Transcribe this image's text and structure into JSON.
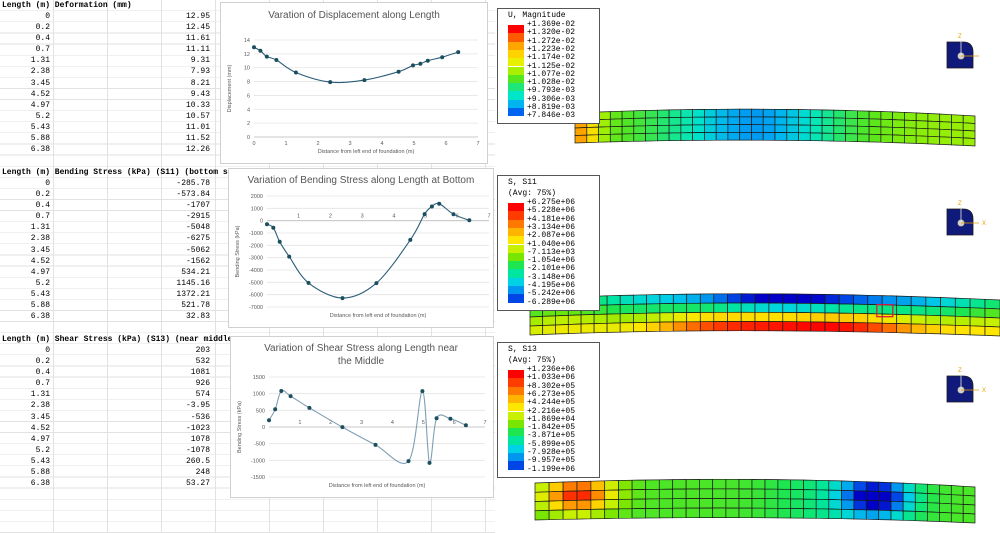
{
  "sheet": {
    "tables": [
      {
        "header": "Length (m)  Deformation (mm)",
        "rows": [
          [
            "0",
            "12.95"
          ],
          [
            "0.2",
            "12.45"
          ],
          [
            "0.4",
            "11.61"
          ],
          [
            "0.7",
            "11.11"
          ],
          [
            "1.31",
            "9.31"
          ],
          [
            "2.38",
            "7.93"
          ],
          [
            "3.45",
            "8.21"
          ],
          [
            "4.52",
            "9.43"
          ],
          [
            "4.97",
            "10.33"
          ],
          [
            "5.2",
            "10.57"
          ],
          [
            "5.43",
            "11.01"
          ],
          [
            "5.88",
            "11.52"
          ],
          [
            "6.38",
            "12.26"
          ]
        ]
      },
      {
        "header": "Length (m)  Bending Stress (kPa) (S11) (bottom s",
        "rows": [
          [
            "0",
            "-285.78"
          ],
          [
            "0.2",
            "-573.84"
          ],
          [
            "0.4",
            "-1707"
          ],
          [
            "0.7",
            "-2915"
          ],
          [
            "1.31",
            "-5048"
          ],
          [
            "2.38",
            "-6275"
          ],
          [
            "3.45",
            "-5062"
          ],
          [
            "4.52",
            "-1562"
          ],
          [
            "4.97",
            "534.21"
          ],
          [
            "5.2",
            "1145.16"
          ],
          [
            "5.43",
            "1372.21"
          ],
          [
            "5.88",
            "521.78"
          ],
          [
            "6.38",
            "32.83"
          ]
        ]
      },
      {
        "header": "Length (m)  Shear Stress (kPa) (S13) (near middle",
        "rows": [
          [
            "0",
            "203"
          ],
          [
            "0.2",
            "532"
          ],
          [
            "0.4",
            "1081"
          ],
          [
            "0.7",
            "926"
          ],
          [
            "1.31",
            "574"
          ],
          [
            "2.38",
            "-3.95"
          ],
          [
            "3.45",
            "-536"
          ],
          [
            "4.52",
            "-1023"
          ],
          [
            "4.97",
            "1078"
          ],
          [
            "5.2",
            "-1078"
          ],
          [
            "5.43",
            "260.5"
          ],
          [
            "5.88",
            "248"
          ],
          [
            "6.38",
            "53.27"
          ]
        ]
      }
    ]
  },
  "chart_data": [
    {
      "type": "line",
      "title": "Varation of Displacement along Length",
      "xlabel": "Distance from left end of foundation (m)",
      "ylabel": "Displacement (mm)",
      "xlim": [
        0,
        7
      ],
      "ylim": [
        0,
        14
      ],
      "xticks": [
        "0",
        "1",
        "2",
        "3",
        "4",
        "5",
        "6",
        "7"
      ],
      "yticks": [
        "0",
        "2",
        "4",
        "6",
        "8",
        "10",
        "12",
        "14"
      ],
      "x": [
        0,
        0.2,
        0.4,
        0.7,
        1.31,
        2.38,
        3.45,
        4.52,
        4.97,
        5.2,
        5.43,
        5.88,
        6.38
      ],
      "y": [
        12.95,
        12.45,
        11.61,
        11.11,
        9.31,
        7.93,
        8.21,
        9.43,
        10.33,
        10.57,
        11.01,
        11.52,
        12.26
      ],
      "color": "#2c5d78",
      "marker_color": "#1b4f5e"
    },
    {
      "type": "line",
      "title": "Variation of Bending Stress along Length at Bottom",
      "xlabel": "Distance from left end of foundation (m)",
      "ylabel": "Bending Stress (kPa)",
      "xlim": [
        0,
        7
      ],
      "ylim": [
        -7000,
        2000
      ],
      "xticks": [
        "1",
        "2",
        "3",
        "4",
        "5",
        "6",
        "7"
      ],
      "yticks": [
        "2000",
        "1000",
        "0",
        "-1000",
        "-2000",
        "-3000",
        "-4000",
        "-5000",
        "-6000",
        "-7000"
      ],
      "x": [
        0,
        0.2,
        0.4,
        0.7,
        1.31,
        2.38,
        3.45,
        4.52,
        4.97,
        5.2,
        5.43,
        5.88,
        6.38
      ],
      "y": [
        -285.78,
        -573.84,
        -1707,
        -2915,
        -5048,
        -6275,
        -5062,
        -1562,
        534.21,
        1145.16,
        1372.21,
        521.78,
        32.83
      ],
      "color": "#2c5d78",
      "marker_color": "#1b4f5e"
    },
    {
      "type": "line",
      "title": "Variation of Shear Stress along Length near the Middle",
      "xlabel": "Distance from left end of foundation (m)",
      "ylabel": "Bending Stress (kPa)",
      "xlim": [
        0,
        7
      ],
      "ylim": [
        -1500,
        1500
      ],
      "xticks": [
        "1",
        "2",
        "3",
        "4",
        "5",
        "6",
        "7"
      ],
      "yticks": [
        "1500",
        "1000",
        "500",
        "0",
        "-500",
        "-1000",
        "-1500"
      ],
      "x": [
        0,
        0.2,
        0.4,
        0.7,
        1.31,
        2.38,
        3.45,
        4.52,
        4.97,
        5.2,
        5.43,
        5.88,
        6.38
      ],
      "y": [
        203,
        532,
        1081,
        926,
        574,
        -3.95,
        -536,
        -1023,
        1078,
        -1078,
        260.5,
        248,
        53.27
      ],
      "color": "#7f9fb4",
      "marker_color": "#1b4f5e"
    }
  ],
  "fea": {
    "panels": [
      {
        "title": [
          "U, Magnitude"
        ],
        "values": [
          "+1.369e-02",
          "+1.320e-02",
          "+1.272e-02",
          "+1.223e-02",
          "+1.174e-02",
          "+1.125e-02",
          "+1.077e-02",
          "+1.028e-02",
          "+9.793e-03",
          "+9.306e-03",
          "+8.819e-03",
          "+7.846e-03"
        ],
        "colors": [
          "#ff0000",
          "#ff5a00",
          "#ffa500",
          "#ffd200",
          "#e6f000",
          "#a8f000",
          "#55e61e",
          "#1ee678",
          "#00e6c8",
          "#00b4f0",
          "#0064f0",
          "#0000c8"
        ],
        "triad_labels": [
          "Z"
        ]
      },
      {
        "title": [
          "S, S11",
          "(Avg: 75%)"
        ],
        "values": [
          "+6.275e+06",
          "+5.228e+06",
          "+4.181e+06",
          "+3.134e+06",
          "+2.087e+06",
          "+1.040e+06",
          "-7.113e+03",
          "-1.054e+06",
          "-2.101e+06",
          "-3.148e+06",
          "-4.195e+06",
          "-5.242e+06",
          "-6.289e+06"
        ],
        "colors": [
          "#ff0000",
          "#ff3c00",
          "#ff7800",
          "#ffb400",
          "#ffe600",
          "#c8f000",
          "#78e600",
          "#1ee650",
          "#00e6a0",
          "#00d2e6",
          "#0096f0",
          "#0046e6",
          "#0000c8"
        ],
        "triad_labels": [
          "Z",
          "X"
        ]
      },
      {
        "title": [
          "S, S13",
          "(Avg: 75%)"
        ],
        "values": [
          "+1.236e+06",
          "+1.033e+06",
          "+8.302e+05",
          "+6.273e+05",
          "+4.244e+05",
          "+2.216e+05",
          "+1.869e+04",
          "-1.842e+05",
          "-3.871e+05",
          "-5.899e+05",
          "-7.928e+05",
          "-9.957e+05",
          "-1.199e+06"
        ],
        "colors": [
          "#ff0000",
          "#ff3c00",
          "#ff7800",
          "#ffb400",
          "#ffe600",
          "#c8f000",
          "#78e600",
          "#1ee650",
          "#00e6a0",
          "#00d2e6",
          "#0096f0",
          "#0046e6",
          "#0000c8"
        ],
        "triad_labels": [
          "Z",
          "X"
        ]
      }
    ]
  }
}
